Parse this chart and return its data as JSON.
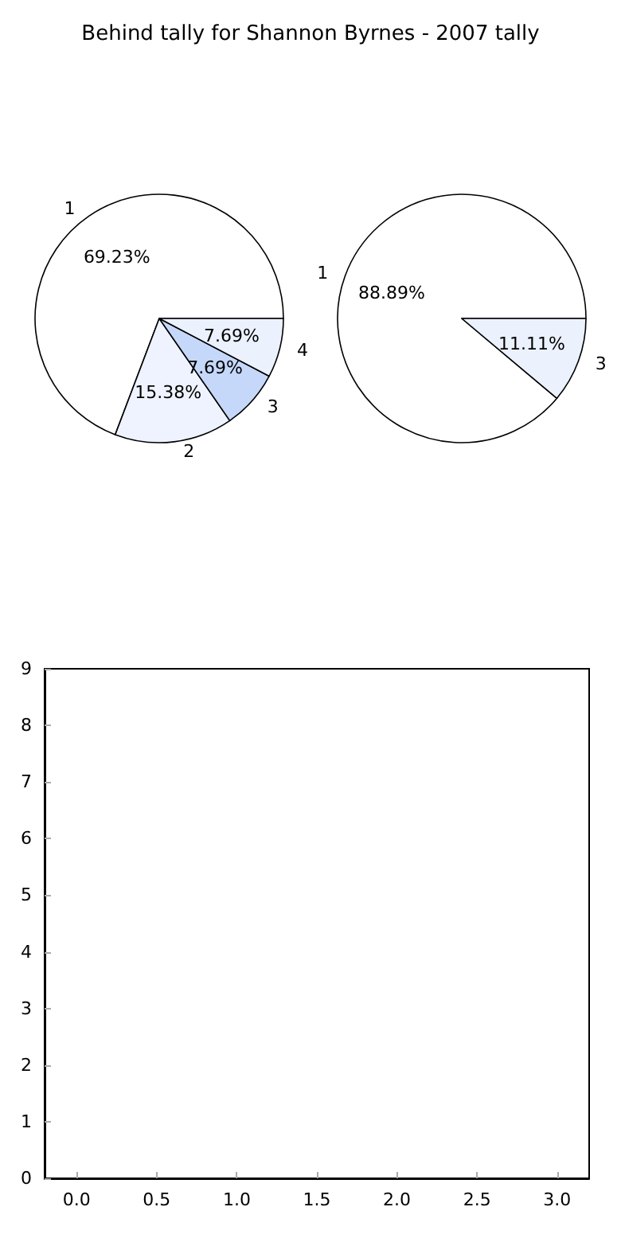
{
  "chart_data": [
    {
      "type": "pie",
      "title": "Behind tally for Shannon Byrnes - 2007 tally",
      "categories": [
        "1",
        "2",
        "3",
        "4"
      ],
      "values": [
        69.23,
        15.38,
        7.69,
        7.69
      ],
      "value_labels": [
        "69.23%",
        "15.38%",
        "7.69%",
        "7.69%"
      ],
      "colors": [
        "#ffffff",
        "#eef3ff",
        "#c6d8fa",
        "#ebf1fd"
      ]
    },
    {
      "type": "pie",
      "categories": [
        "1",
        "3"
      ],
      "values": [
        88.89,
        11.11
      ],
      "value_labels": [
        "88.89%",
        "11.11%"
      ],
      "colors": [
        "#ffffff",
        "#ebf1fd"
      ]
    },
    {
      "type": "scatter",
      "xlim": [
        -0.2,
        3.2
      ],
      "ylim": [
        0,
        9
      ],
      "xticks": [
        {
          "value": 0,
          "label": "0.0"
        },
        {
          "value": 0.5,
          "label": "0.5"
        },
        {
          "value": 1,
          "label": "1.0"
        },
        {
          "value": 1.5,
          "label": "1.5"
        },
        {
          "value": 2,
          "label": "2.0"
        },
        {
          "value": 2.5,
          "label": "2.5"
        },
        {
          "value": 3,
          "label": "3.0"
        }
      ],
      "yticks": [
        0,
        1,
        2,
        3,
        4,
        5,
        6,
        7,
        8,
        9
      ]
    }
  ]
}
